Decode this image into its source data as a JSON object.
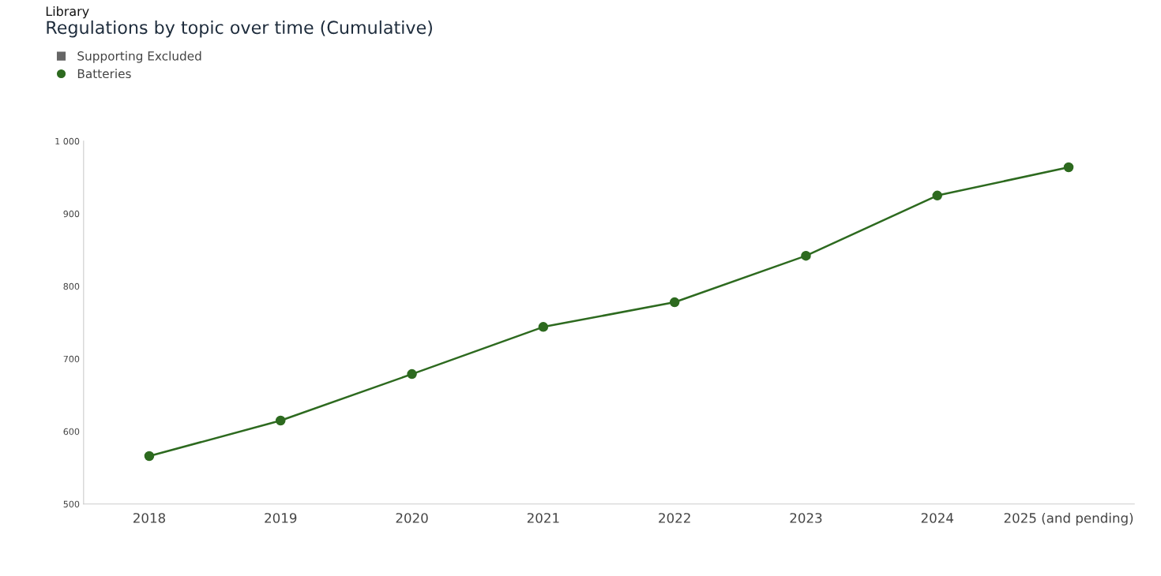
{
  "chart_data": {
    "type": "line",
    "title": "Regulations by topic over time (Cumulative)",
    "annotations": [
      "Library"
    ],
    "categories": [
      "2018",
      "2019",
      "2020",
      "2021",
      "2022",
      "2023",
      "2024",
      "2025 (and pending)"
    ],
    "series": [
      {
        "name": "Supporting Excluded",
        "color": "#666666",
        "marker": "square",
        "values": [
          null,
          null,
          null,
          null,
          null,
          null,
          null,
          null
        ]
      },
      {
        "name": "Batteries",
        "color": "#2d6a1f",
        "marker": "circle",
        "values": [
          566,
          615,
          679,
          744,
          778,
          842,
          925,
          964
        ]
      }
    ],
    "ylim": [
      500,
      1000
    ],
    "yticks": [
      500,
      600,
      700,
      800,
      900,
      {
        "value": 1000,
        "label": "1 000"
      }
    ],
    "grid": false,
    "legend": "top left",
    "line_style": "solid"
  }
}
